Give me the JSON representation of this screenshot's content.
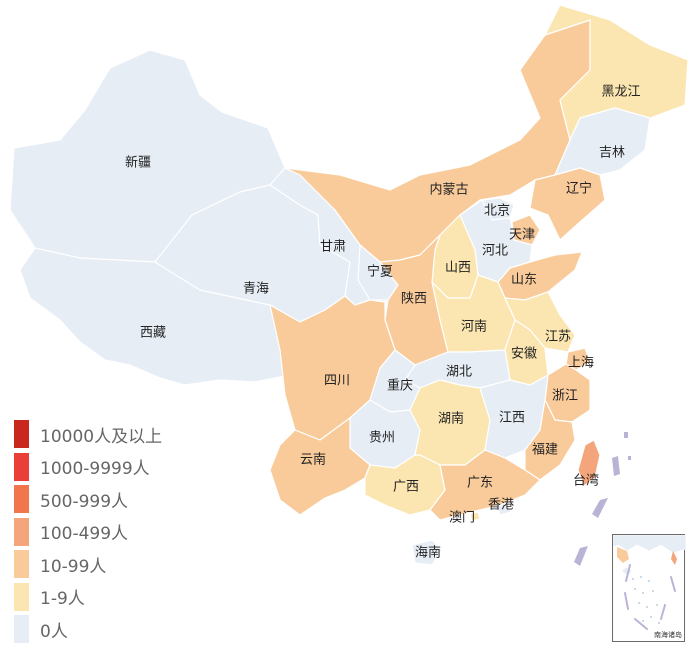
{
  "colors": {
    "level0": "#e6edf5",
    "level1": "#fbe6b1",
    "level2": "#f9cb9a",
    "level3": "#f4a57c",
    "level4": "#f2764c",
    "level5": "#ea3f38",
    "level6": "#c8281e",
    "island": "#b9b4d6"
  },
  "legend": {
    "items": [
      {
        "label": "10000人及以上",
        "level": "level6"
      },
      {
        "label": "1000-9999人",
        "level": "level5"
      },
      {
        "label": "500-999人",
        "level": "level4"
      },
      {
        "label": "100-499人",
        "level": "level3"
      },
      {
        "label": "10-99人",
        "level": "level2"
      },
      {
        "label": "1-9人",
        "level": "level1"
      },
      {
        "label": "0人",
        "level": "level0"
      }
    ]
  },
  "provinces": [
    {
      "key": "xinjiang",
      "name": "新疆",
      "level": "level0"
    },
    {
      "key": "xizang",
      "name": "西藏",
      "level": "level0"
    },
    {
      "key": "qinghai",
      "name": "青海",
      "level": "level0"
    },
    {
      "key": "gansu",
      "name": "甘肃",
      "level": "level0"
    },
    {
      "key": "neimenggu",
      "name": "内蒙古",
      "level": "level2"
    },
    {
      "key": "heilongjiang",
      "name": "黑龙江",
      "level": "level1"
    },
    {
      "key": "jilin",
      "name": "吉林",
      "level": "level0"
    },
    {
      "key": "liaoning",
      "name": "辽宁",
      "level": "level2"
    },
    {
      "key": "beijing",
      "name": "北京",
      "level": "level0"
    },
    {
      "key": "tianjin",
      "name": "天津",
      "level": "level2"
    },
    {
      "key": "hebei",
      "name": "河北",
      "level": "level0"
    },
    {
      "key": "shanxi",
      "name": "山西",
      "level": "level1"
    },
    {
      "key": "shandong",
      "name": "山东",
      "level": "level2"
    },
    {
      "key": "ningxia",
      "name": "宁夏",
      "level": "level0"
    },
    {
      "key": "shaanxi",
      "name": "陕西",
      "level": "level2"
    },
    {
      "key": "henan",
      "name": "河南",
      "level": "level1"
    },
    {
      "key": "jiangsu",
      "name": "江苏",
      "level": "level1"
    },
    {
      "key": "anhui",
      "name": "安徽",
      "level": "level1"
    },
    {
      "key": "shanghai",
      "name": "上海",
      "level": "level2"
    },
    {
      "key": "hubei",
      "name": "湖北",
      "level": "level0"
    },
    {
      "key": "sichuan",
      "name": "四川",
      "level": "level2"
    },
    {
      "key": "chongqing",
      "name": "重庆",
      "level": "level0"
    },
    {
      "key": "zhejiang",
      "name": "浙江",
      "level": "level2"
    },
    {
      "key": "guizhou",
      "name": "贵州",
      "level": "level0"
    },
    {
      "key": "hunan",
      "name": "湖南",
      "level": "level1"
    },
    {
      "key": "jiangxi",
      "name": "江西",
      "level": "level0"
    },
    {
      "key": "yunnan",
      "name": "云南",
      "level": "level2"
    },
    {
      "key": "fujian",
      "name": "福建",
      "level": "level2"
    },
    {
      "key": "guangxi",
      "name": "广西",
      "level": "level1"
    },
    {
      "key": "guangdong",
      "name": "广东",
      "level": "level2"
    },
    {
      "key": "taiwan",
      "name": "台湾",
      "level": "level3"
    },
    {
      "key": "hongkong",
      "name": "香港",
      "level": "level0"
    },
    {
      "key": "macau",
      "name": "澳门",
      "level": "level1"
    },
    {
      "key": "hainan",
      "name": "海南",
      "level": "level0"
    }
  ],
  "inset": {
    "label": "南海诸岛"
  }
}
